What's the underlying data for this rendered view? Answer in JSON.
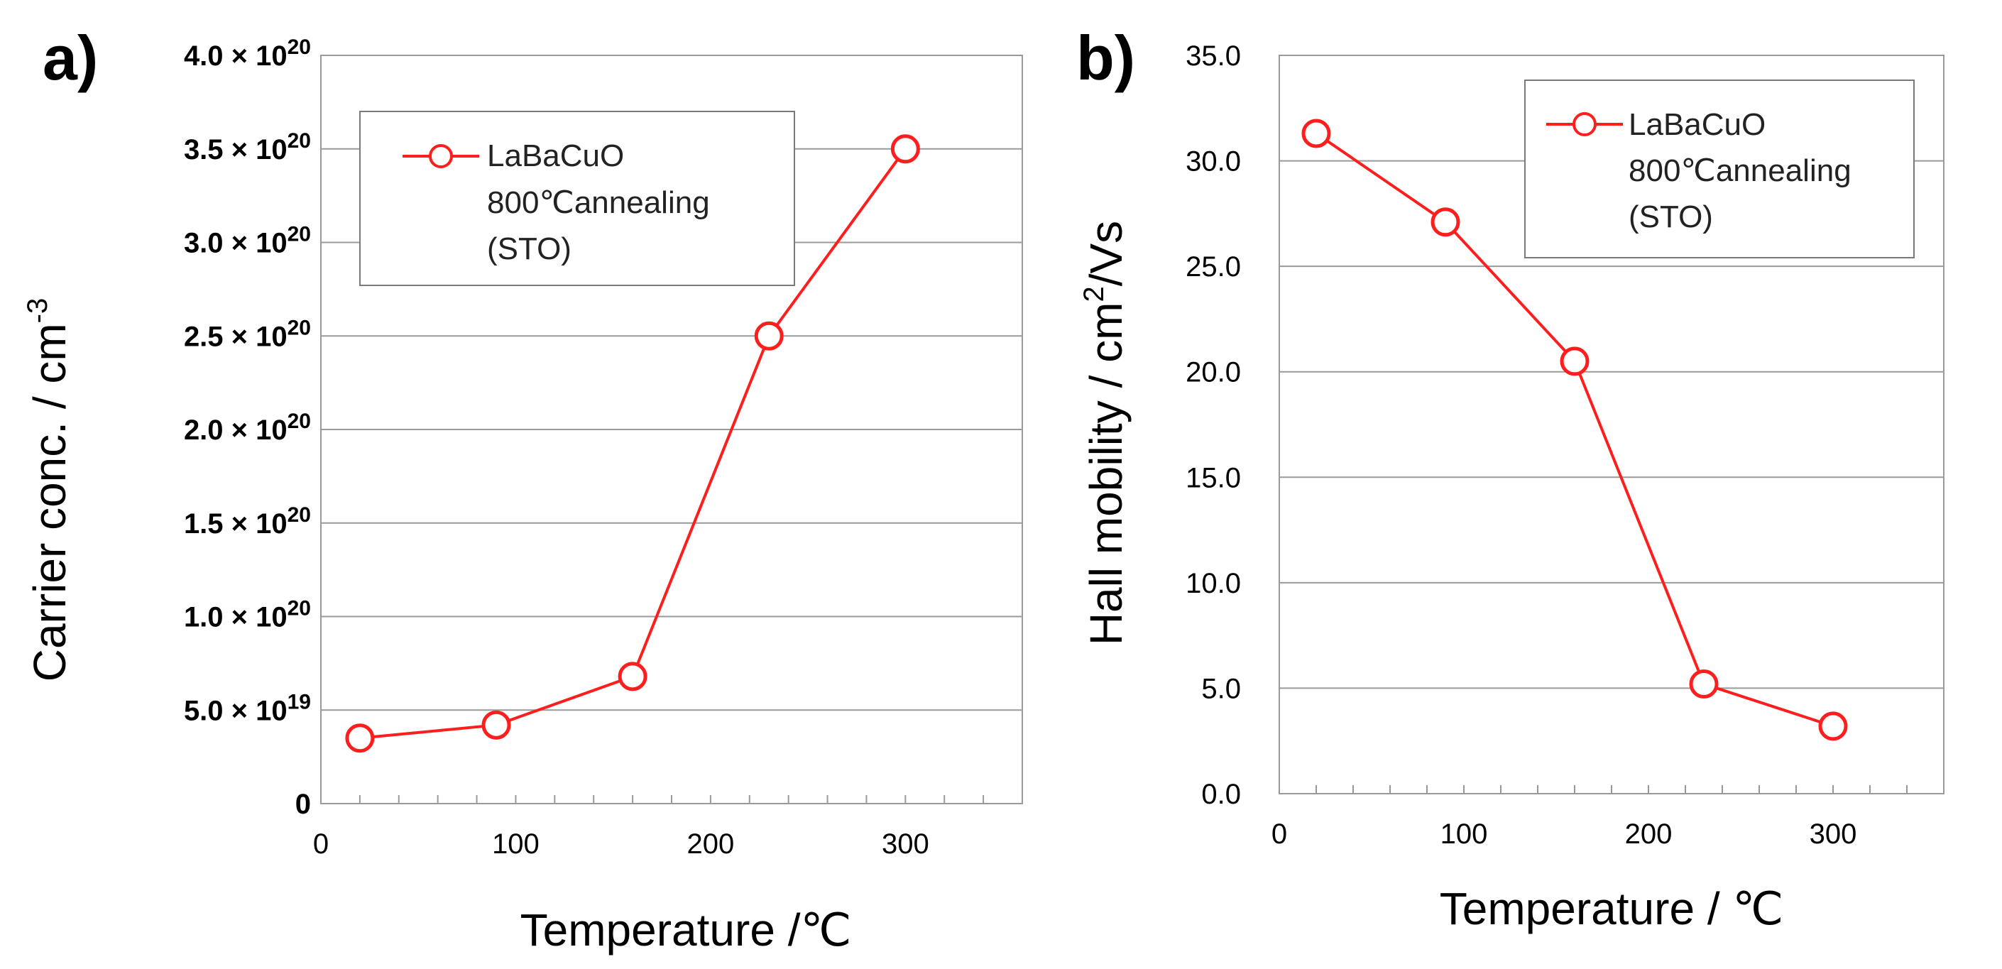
{
  "chart_data": [
    {
      "panel_label": "a)",
      "type": "line",
      "xlabel": "Temperature /℃",
      "ylabel": "Carrier conc. / cm",
      "ylabel_sup": "-3",
      "xlim": [
        0,
        360
      ],
      "ylim": [
        0,
        4e+20
      ],
      "x_ticks": [
        {
          "value": 0,
          "label": "0"
        },
        {
          "value": 100,
          "label": "100"
        },
        {
          "value": 200,
          "label": "200"
        },
        {
          "value": 300,
          "label": "300"
        }
      ],
      "y_ticks": [
        {
          "value": 0,
          "label": "0",
          "exp": ""
        },
        {
          "value": 5e+19,
          "label": "5.0 × 10",
          "exp": "19"
        },
        {
          "value": 1e+20,
          "label": "1.0 × 10",
          "exp": "20"
        },
        {
          "value": 1.5e+20,
          "label": "1.5 × 10",
          "exp": "20"
        },
        {
          "value": 2e+20,
          "label": "2.0 × 10",
          "exp": "20"
        },
        {
          "value": 2.5e+20,
          "label": "2.5 × 10",
          "exp": "20"
        },
        {
          "value": 3e+20,
          "label": "3.0 × 10",
          "exp": "20"
        },
        {
          "value": 3.5e+20,
          "label": "3.5 × 10",
          "exp": "20"
        },
        {
          "value": 4e+20,
          "label": "4.0 × 10",
          "exp": "20"
        }
      ],
      "grid": "horizontal",
      "legend_position": "top-left",
      "series": [
        {
          "name": [
            "LaBaCuO",
            "800℃annealing",
            "(STO)"
          ],
          "color": "#ff1e1e",
          "marker": "open-circle",
          "x": [
            20,
            90,
            160,
            230,
            300
          ],
          "y": [
            3.5e+19,
            4.2e+19,
            6.8e+19,
            2.5e+20,
            3.5e+20
          ]
        }
      ]
    },
    {
      "panel_label": "b)",
      "type": "line",
      "xlabel": "Temperature / ℃",
      "ylabel": "Hall mobility  / cm",
      "ylabel_sup": "2",
      "ylabel_suffix": "/Vs",
      "xlim": [
        0,
        360
      ],
      "ylim": [
        0,
        35
      ],
      "x_ticks": [
        {
          "value": 0,
          "label": "0"
        },
        {
          "value": 100,
          "label": "100"
        },
        {
          "value": 200,
          "label": "200"
        },
        {
          "value": 300,
          "label": "300"
        }
      ],
      "y_ticks": [
        {
          "value": 0,
          "label": "0.0"
        },
        {
          "value": 5,
          "label": "5.0"
        },
        {
          "value": 10,
          "label": "10.0"
        },
        {
          "value": 15,
          "label": "15.0"
        },
        {
          "value": 20,
          "label": "20.0"
        },
        {
          "value": 25,
          "label": "25.0"
        },
        {
          "value": 30,
          "label": "30.0"
        },
        {
          "value": 35,
          "label": "35.0"
        }
      ],
      "grid": "horizontal",
      "legend_position": "top-right",
      "series": [
        {
          "name": [
            "LaBaCuO",
            "800℃annealing",
            "(STO)"
          ],
          "color": "#ff1e1e",
          "marker": "open-circle",
          "x": [
            20,
            90,
            160,
            230,
            300
          ],
          "y": [
            31.3,
            27.1,
            20.5,
            5.2,
            3.2
          ]
        }
      ]
    }
  ]
}
